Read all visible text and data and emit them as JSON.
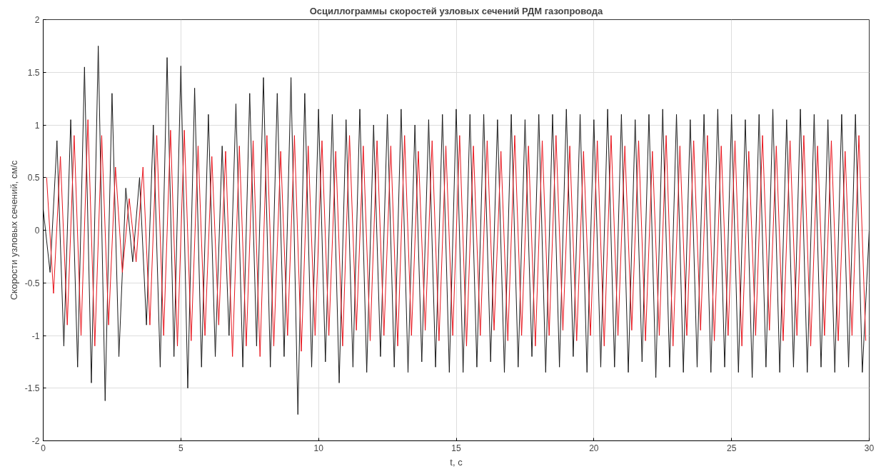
{
  "chart_data": {
    "type": "line",
    "title": "Осциллограммы скоростей узловых сечений РДМ газопровода",
    "xlabel": "t, c",
    "ylabel": "Скорости узловых сечений, см/с",
    "xlim": [
      0,
      30
    ],
    "ylim": [
      -2,
      2
    ],
    "xticks": [
      0,
      5,
      10,
      15,
      20,
      25,
      30
    ],
    "yticks": [
      -2,
      -1.5,
      -1,
      -0.5,
      0,
      0.5,
      1,
      1.5,
      2
    ],
    "grid": true,
    "series": [
      {
        "color": "#1a1a1a",
        "x": [
          0,
          0.25,
          0.5,
          0.75,
          1,
          1.25,
          1.5,
          1.75,
          2,
          2.25,
          2.5,
          2.75,
          3,
          3.25,
          3.5,
          3.75,
          4,
          4.25,
          4.5,
          4.75,
          5,
          5.25,
          5.5,
          5.75,
          6,
          6.25,
          6.5,
          6.75,
          7,
          7.25,
          7.5,
          7.75,
          8,
          8.25,
          8.5,
          8.75,
          9,
          9.25,
          9.5,
          9.75,
          10,
          10.25,
          10.5,
          10.75,
          11,
          11.25,
          11.5,
          11.75,
          12,
          12.25,
          12.5,
          12.75,
          13,
          13.25,
          13.5,
          13.75,
          14,
          14.25,
          14.5,
          14.75,
          15,
          15.25,
          15.5,
          15.75,
          16,
          16.25,
          16.5,
          16.75,
          17,
          17.25,
          17.5,
          17.75,
          18,
          18.25,
          18.5,
          18.75,
          19,
          19.25,
          19.5,
          19.75,
          20,
          20.25,
          20.5,
          20.75,
          21,
          21.25,
          21.5,
          21.75,
          22,
          22.25,
          22.5,
          22.75,
          23,
          23.25,
          23.5,
          23.75,
          24,
          24.25,
          24.5,
          24.75,
          25,
          25.25,
          25.5,
          25.75,
          26,
          26.25,
          26.5,
          26.75,
          27,
          27.25,
          27.5,
          27.75,
          28,
          28.25,
          28.5,
          28.75,
          29,
          29.25,
          29.5,
          29.75,
          30
        ],
        "values": [
          0.2,
          -0.4,
          0.85,
          -1.1,
          1.05,
          -1.3,
          1.55,
          -1.45,
          1.75,
          -1.62,
          1.3,
          -1.2,
          0.4,
          -0.3,
          0.5,
          -0.9,
          1.0,
          -1.3,
          1.64,
          -1.2,
          1.56,
          -1.5,
          1.35,
          -1.3,
          1.1,
          -1.2,
          0.8,
          -1.0,
          1.2,
          -1.3,
          1.3,
          -1.1,
          1.45,
          -1.3,
          1.3,
          -1.2,
          1.45,
          -1.75,
          1.3,
          -1.3,
          1.15,
          -1.25,
          1.1,
          -1.45,
          1.05,
          -1.3,
          1.15,
          -1.35,
          1.0,
          -1.2,
          1.1,
          -1.3,
          1.15,
          -1.35,
          1.0,
          -1.25,
          1.05,
          -1.3,
          1.1,
          -1.35,
          1.15,
          -1.35,
          1.1,
          -1.3,
          1.1,
          -1.25,
          1.05,
          -1.35,
          1.1,
          -1.3,
          1.05,
          -1.2,
          1.1,
          -1.35,
          1.1,
          -1.3,
          1.15,
          -1.2,
          1.1,
          -1.35,
          1.05,
          -1.3,
          1.15,
          -1.3,
          1.1,
          -1.35,
          1.05,
          -1.25,
          1.1,
          -1.4,
          1.15,
          -1.3,
          1.1,
          -1.35,
          1.05,
          -1.3,
          1.1,
          -1.35,
          1.15,
          -1.3,
          1.1,
          -1.35,
          1.05,
          -1.4,
          1.1,
          -1.3,
          1.15,
          -1.35,
          1.05,
          -1.3,
          1.15,
          -1.35,
          1.1,
          -1.3,
          1.05,
          -1.35,
          1.1,
          -1.3,
          1.1,
          -1.35,
          0.0
        ]
      },
      {
        "color": "#e8141c",
        "x": [
          0.125,
          0.375,
          0.625,
          0.875,
          1.125,
          1.375,
          1.625,
          1.875,
          2.125,
          2.375,
          2.625,
          2.875,
          3.125,
          3.375,
          3.625,
          3.875,
          4.125,
          4.375,
          4.625,
          4.875,
          5.125,
          5.375,
          5.625,
          5.875,
          6.125,
          6.375,
          6.625,
          6.875,
          7.125,
          7.375,
          7.625,
          7.875,
          8.125,
          8.375,
          8.625,
          8.875,
          9.125,
          9.375,
          9.625,
          9.875,
          10.125,
          10.375,
          10.625,
          10.875,
          11.125,
          11.375,
          11.625,
          11.875,
          12.125,
          12.375,
          12.625,
          12.875,
          13.125,
          13.375,
          13.625,
          13.875,
          14.125,
          14.375,
          14.625,
          14.875,
          15.125,
          15.375,
          15.625,
          15.875,
          16.125,
          16.375,
          16.625,
          16.875,
          17.125,
          17.375,
          17.625,
          17.875,
          18.125,
          18.375,
          18.625,
          18.875,
          19.125,
          19.375,
          19.625,
          19.875,
          20.125,
          20.375,
          20.625,
          20.875,
          21.125,
          21.375,
          21.625,
          21.875,
          22.125,
          22.375,
          22.625,
          22.875,
          23.125,
          23.375,
          23.625,
          23.875,
          24.125,
          24.375,
          24.625,
          24.875,
          25.125,
          25.375,
          25.625,
          25.875,
          26.125,
          26.375,
          26.625,
          26.875,
          27.125,
          27.375,
          27.625,
          27.875,
          28.125,
          28.375,
          28.625,
          28.875,
          29.125,
          29.375,
          29.625,
          29.875
        ],
        "values": [
          0.5,
          -0.6,
          0.7,
          -0.9,
          0.9,
          -1.0,
          1.05,
          -1.1,
          0.9,
          -0.9,
          0.6,
          -0.4,
          0.3,
          -0.3,
          0.6,
          -0.9,
          0.9,
          -1.0,
          0.95,
          -1.1,
          0.95,
          -1.05,
          0.8,
          -1.0,
          0.7,
          -0.9,
          0.75,
          -1.2,
          0.8,
          -1.1,
          0.85,
          -1.2,
          0.9,
          -1.1,
          0.75,
          -1.0,
          0.9,
          -1.15,
          0.8,
          -1.0,
          0.85,
          -1.0,
          0.75,
          -1.1,
          0.9,
          -0.95,
          0.8,
          -1.05,
          0.85,
          -1.0,
          0.8,
          -1.1,
          0.9,
          -1.0,
          0.75,
          -0.95,
          0.85,
          -1.05,
          0.8,
          -1.0,
          0.9,
          -1.1,
          0.8,
          -1.0,
          0.85,
          -0.95,
          0.75,
          -1.05,
          0.9,
          -1.0,
          0.8,
          -1.1,
          0.85,
          -1.0,
          0.9,
          -0.95,
          0.8,
          -1.05,
          0.75,
          -1.0,
          0.85,
          -1.1,
          0.9,
          -1.0,
          0.8,
          -0.95,
          0.85,
          -1.05,
          0.75,
          -1.0,
          0.9,
          -1.1,
          0.8,
          -1.0,
          0.85,
          -0.95,
          0.9,
          -1.05,
          0.8,
          -1.0,
          0.85,
          -1.1,
          0.75,
          -1.0,
          0.9,
          -0.95,
          0.8,
          -1.05,
          0.85,
          -1.0,
          0.9,
          -1.1,
          0.8,
          -1.0,
          0.85,
          -1.05,
          0.75,
          -1.0,
          0.9,
          -1.05
        ]
      }
    ]
  }
}
